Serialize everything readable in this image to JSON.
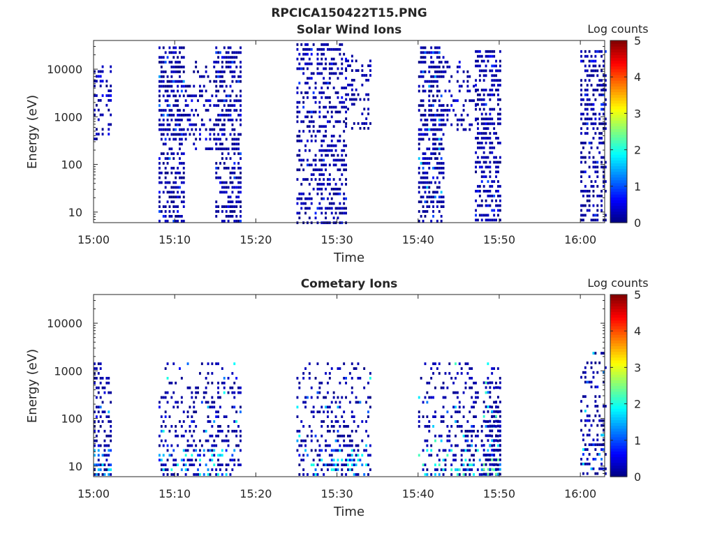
{
  "figure": {
    "title": "RPCICA150422T15.PNG"
  },
  "chart_data": [
    {
      "type": "heatmap",
      "title": "Solar Wind Ions",
      "xlabel": "Time",
      "ylabel": "Energy (eV)",
      "x_ticks": [
        "15:00",
        "15:10",
        "15:20",
        "15:30",
        "15:40",
        "15:50",
        "16:00"
      ],
      "x_range_minutes_after_15": [
        0,
        63
      ],
      "y_scale": "log",
      "y_ticks": [
        "10",
        "100",
        "1000",
        "10000"
      ],
      "y_range_eV": [
        6,
        40000
      ],
      "colorbar": {
        "label": "Log counts",
        "ticks": [
          "0",
          "1",
          "2",
          "3",
          "4",
          "5"
        ],
        "range": [
          0,
          5
        ],
        "colormap": "jet"
      },
      "bursts": [
        {
          "time_start": "15:00",
          "time_end": "15:02",
          "energy_low_eV": 300,
          "energy_high_eV": 12000,
          "density": 0.35,
          "log_counts_max": 0.6
        },
        {
          "time_start": "15:08",
          "time_end": "15:11",
          "energy_low_eV": 6,
          "energy_high_eV": 30000,
          "density": 0.55,
          "log_counts_max": 1.4
        },
        {
          "time_start": "15:11",
          "time_end": "15:15",
          "energy_low_eV": 200,
          "energy_high_eV": 15000,
          "density": 0.3,
          "log_counts_max": 0.6
        },
        {
          "time_start": "15:15",
          "time_end": "15:18",
          "energy_low_eV": 6,
          "energy_high_eV": 30000,
          "density": 0.55,
          "log_counts_max": 1.0
        },
        {
          "time_start": "15:25",
          "time_end": "15:31",
          "energy_low_eV": 6,
          "energy_high_eV": 35000,
          "density": 0.45,
          "log_counts_max": 0.9
        },
        {
          "time_start": "15:31",
          "time_end": "15:34",
          "energy_low_eV": 500,
          "energy_high_eV": 20000,
          "density": 0.3,
          "log_counts_max": 0.6
        },
        {
          "time_start": "15:40",
          "time_end": "15:43",
          "energy_low_eV": 6,
          "energy_high_eV": 30000,
          "density": 0.55,
          "log_counts_max": 1.6
        },
        {
          "time_start": "15:43",
          "time_end": "15:47",
          "energy_low_eV": 500,
          "energy_high_eV": 15000,
          "density": 0.3,
          "log_counts_max": 0.6
        },
        {
          "time_start": "15:47",
          "time_end": "15:50",
          "energy_low_eV": 6,
          "energy_high_eV": 25000,
          "density": 0.55,
          "log_counts_max": 1.0
        },
        {
          "time_start": "16:00",
          "time_end": "16:03",
          "energy_low_eV": 6,
          "energy_high_eV": 25000,
          "density": 0.5,
          "log_counts_max": 0.9
        }
      ]
    },
    {
      "type": "heatmap",
      "title": "Cometary Ions",
      "xlabel": "Time",
      "ylabel": "Energy (eV)",
      "x_ticks": [
        "15:00",
        "15:10",
        "15:20",
        "15:30",
        "15:40",
        "15:50",
        "16:00"
      ],
      "x_range_minutes_after_15": [
        0,
        63
      ],
      "y_scale": "log",
      "y_ticks": [
        "10",
        "100",
        "1000",
        "10000"
      ],
      "y_range_eV": [
        6,
        40000
      ],
      "colorbar": {
        "label": "Log counts",
        "ticks": [
          "0",
          "1",
          "2",
          "3",
          "4",
          "5"
        ],
        "range": [
          0,
          5
        ],
        "colormap": "jet"
      },
      "bursts": [
        {
          "time_start": "15:00",
          "time_end": "15:02",
          "energy_low_eV": 6,
          "energy_high_eV": 1500,
          "density": 0.5,
          "log_counts_max": 1.8
        },
        {
          "time_start": "15:08",
          "time_end": "15:18",
          "energy_low_eV": 6,
          "energy_high_eV": 1500,
          "density": 0.35,
          "log_counts_max": 2.0
        },
        {
          "time_start": "15:25",
          "time_end": "15:34",
          "energy_low_eV": 6,
          "energy_high_eV": 1500,
          "density": 0.35,
          "log_counts_max": 2.0
        },
        {
          "time_start": "15:40",
          "time_end": "15:50",
          "energy_low_eV": 6,
          "energy_high_eV": 1500,
          "density": 0.35,
          "log_counts_max": 2.2
        },
        {
          "time_start": "15:48",
          "time_end": "15:50",
          "energy_low_eV": 6,
          "energy_high_eV": 600,
          "density": 0.7,
          "log_counts_max": 2.4
        },
        {
          "time_start": "16:00",
          "time_end": "16:03",
          "energy_low_eV": 6,
          "energy_high_eV": 2500,
          "density": 0.4,
          "log_counts_max": 1.9
        }
      ]
    }
  ]
}
